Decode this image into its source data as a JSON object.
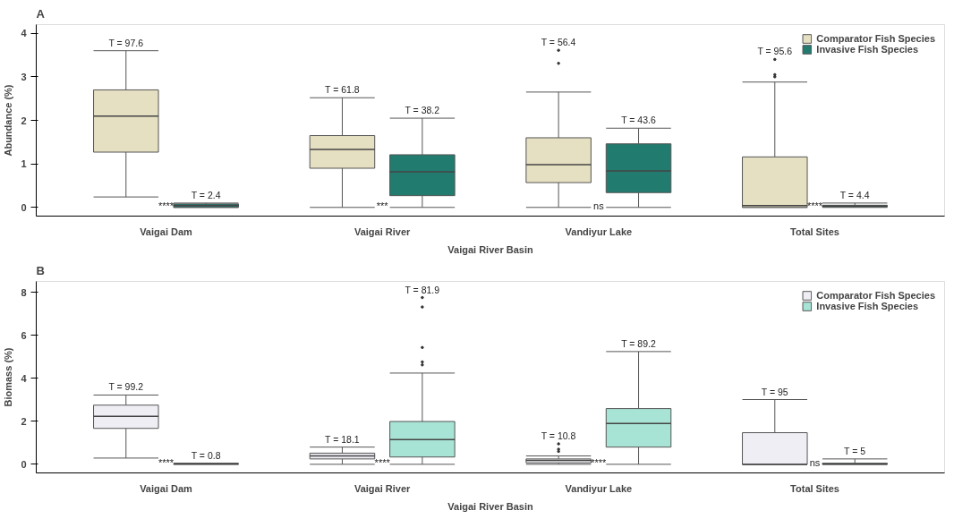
{
  "chart_data": [
    {
      "type": "box",
      "title": "A",
      "xlabel": "Vaigai River Basin",
      "ylabel": "Abundance (%)",
      "categories": [
        "Vaigai Dam",
        "Vaigai River",
        "Vandiyur Lake",
        "Total Sites"
      ],
      "ylim": [
        -0.2,
        4.2
      ],
      "yticks": [
        0,
        1,
        2,
        3,
        4
      ],
      "grid": false,
      "legend": "top right",
      "series": [
        {
          "name": "Comparator Fish Species",
          "color": "#e6e0c2",
          "value_labels": [
            "T = 97.6",
            "T = 61.8",
            "T = 56.4",
            "T = 95.6"
          ],
          "boxes": [
            {
              "low": 0.24,
              "q1": 1.27,
              "median": 2.1,
              "q3": 2.7,
              "high": 3.6
            },
            {
              "low": 0,
              "q1": 0.9,
              "median": 1.33,
              "q3": 1.65,
              "high": 2.52
            },
            {
              "low": 0,
              "q1": 0.57,
              "median": 0.98,
              "q3": 1.6,
              "high": 2.65,
              "outliers": [
                3.31,
                3.61
              ]
            },
            {
              "low": 0,
              "q1": 0,
              "median": 0.04,
              "q3": 1.16,
              "high": 2.88,
              "outliers": [
                3.0,
                3.05,
                3.4
              ]
            }
          ]
        },
        {
          "name": "Invasive Fish Species",
          "color": "#217b6f",
          "value_labels": [
            "T = 2.4",
            "T = 38.2",
            "T = 43.6",
            "T = 4.4"
          ],
          "boxes": [
            {
              "low": 0,
              "q1": 0,
              "median": 0.04,
              "q3": 0.08,
              "high": 0.1
            },
            {
              "low": 0,
              "q1": 0.27,
              "median": 0.82,
              "q3": 1.21,
              "high": 2.05
            },
            {
              "low": 0,
              "q1": 0.34,
              "median": 0.84,
              "q3": 1.46,
              "high": 1.82
            },
            {
              "low": 0,
              "q1": 0.01,
              "median": 0.03,
              "q3": 0.05,
              "high": 0.1
            }
          ]
        }
      ],
      "annotations": [
        "****",
        "***",
        "ns",
        "****"
      ]
    },
    {
      "type": "box",
      "title": "B",
      "xlabel": "Vaigai River Basin",
      "ylabel": "Biomass (%)",
      "categories": [
        "Vaigai Dam",
        "Vaigai River",
        "Vandiyur Lake",
        "Total Sites"
      ],
      "ylim": [
        -0.4,
        8.5
      ],
      "yticks": [
        0,
        2,
        4,
        6,
        8
      ],
      "grid": false,
      "legend": "top right",
      "series": [
        {
          "name": "Comparator Fish Species",
          "color": "#f0eef5",
          "value_labels": [
            "T = 99.2",
            "T = 18.1",
            "T = 10.8",
            "T = 95"
          ],
          "boxes": [
            {
              "low": 0.29,
              "q1": 1.67,
              "median": 2.23,
              "q3": 2.75,
              "high": 3.22
            },
            {
              "low": 0,
              "q1": 0.25,
              "median": 0.39,
              "q3": 0.52,
              "high": 0.8
            },
            {
              "low": 0,
              "q1": 0.07,
              "median": 0.18,
              "q3": 0.25,
              "high": 0.39,
              "outliers": [
                0.6,
                0.7,
                0.95
              ]
            },
            {
              "low": 0,
              "q1": 0,
              "median": 0,
              "q3": 1.47,
              "high": 3.01
            }
          ]
        },
        {
          "name": "Invasive Fish Species",
          "color": "#a8e4d6",
          "value_labels": [
            "T = 0.8",
            "T = 81.9",
            "T = 89.2",
            "T = 5"
          ],
          "boxes": [
            {
              "low": 0,
              "q1": 0.01,
              "median": 0.02,
              "q3": 0.03,
              "high": 0.05
            },
            {
              "low": 0,
              "q1": 0.34,
              "median": 1.15,
              "q3": 1.99,
              "high": 4.24,
              "outliers": [
                4.62,
                4.76,
                5.43,
                7.31,
                7.75
              ]
            },
            {
              "low": 0,
              "q1": 0.8,
              "median": 1.9,
              "q3": 2.59,
              "high": 5.24
            },
            {
              "low": 0,
              "q1": 0,
              "median": 0.02,
              "q3": 0.05,
              "high": 0.25
            }
          ]
        }
      ],
      "annotations": [
        "****",
        "****",
        "****",
        "ns"
      ]
    }
  ]
}
